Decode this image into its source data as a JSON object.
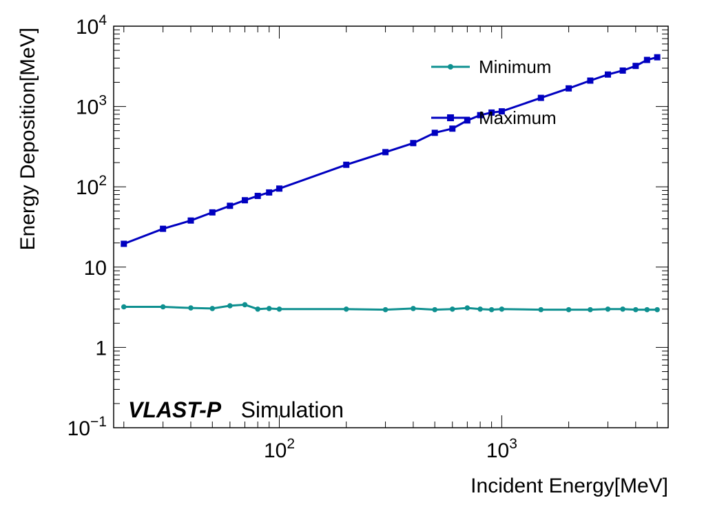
{
  "chart_data": {
    "type": "line",
    "x_scale": "log",
    "y_scale": "log",
    "xlim": [
      18,
      5600
    ],
    "ylim": [
      0.1,
      10000
    ],
    "xlabel": "Incident Energy[MeV]",
    "ylabel": "Energy Deposition[MeV]",
    "x_tick_labels": [
      {
        "value": 100,
        "base": "10",
        "exp": "2"
      },
      {
        "value": 1000,
        "base": "10",
        "exp": "3"
      }
    ],
    "y_tick_labels": [
      {
        "value": 0.1,
        "base": "10",
        "exp": "−1"
      },
      {
        "value": 1,
        "base": "1",
        "exp": ""
      },
      {
        "value": 10,
        "base": "10",
        "exp": ""
      },
      {
        "value": 100,
        "base": "10",
        "exp": "2"
      },
      {
        "value": 1000,
        "base": "10",
        "exp": "3"
      },
      {
        "value": 10000,
        "base": "10",
        "exp": "4"
      }
    ],
    "annotation": {
      "bold": "VLAST-P",
      "normal": "Simulation"
    },
    "legend_position": "top-right",
    "series": [
      {
        "name": "Minimum",
        "color": "#0e9090",
        "marker": "circle",
        "x": [
          20,
          30,
          40,
          50,
          60,
          70,
          80,
          90,
          100,
          200,
          300,
          400,
          500,
          600,
          700,
          800,
          900,
          1000,
          1500,
          2000,
          2500,
          3000,
          3500,
          4000,
          4500,
          5000
        ],
        "y": [
          3.2,
          3.2,
          3.1,
          3.05,
          3.3,
          3.4,
          3.0,
          3.05,
          3.0,
          3.0,
          2.95,
          3.05,
          2.95,
          3.0,
          3.1,
          3.0,
          2.95,
          3.0,
          2.95,
          2.95,
          2.95,
          3.0,
          3.0,
          2.95,
          2.95,
          2.95
        ]
      },
      {
        "name": "Maximum",
        "color": "#0000c0",
        "marker": "square",
        "x": [
          20,
          30,
          40,
          50,
          60,
          70,
          80,
          90,
          100,
          200,
          300,
          400,
          500,
          600,
          700,
          800,
          900,
          1000,
          1500,
          2000,
          2500,
          3000,
          3500,
          4000,
          4500,
          5000
        ],
        "y": [
          19.5,
          30,
          38,
          48,
          58,
          68,
          77,
          85,
          95,
          188,
          270,
          350,
          470,
          530,
          670,
          780,
          840,
          870,
          1280,
          1680,
          2100,
          2500,
          2800,
          3200,
          3800,
          4100
        ]
      }
    ]
  }
}
